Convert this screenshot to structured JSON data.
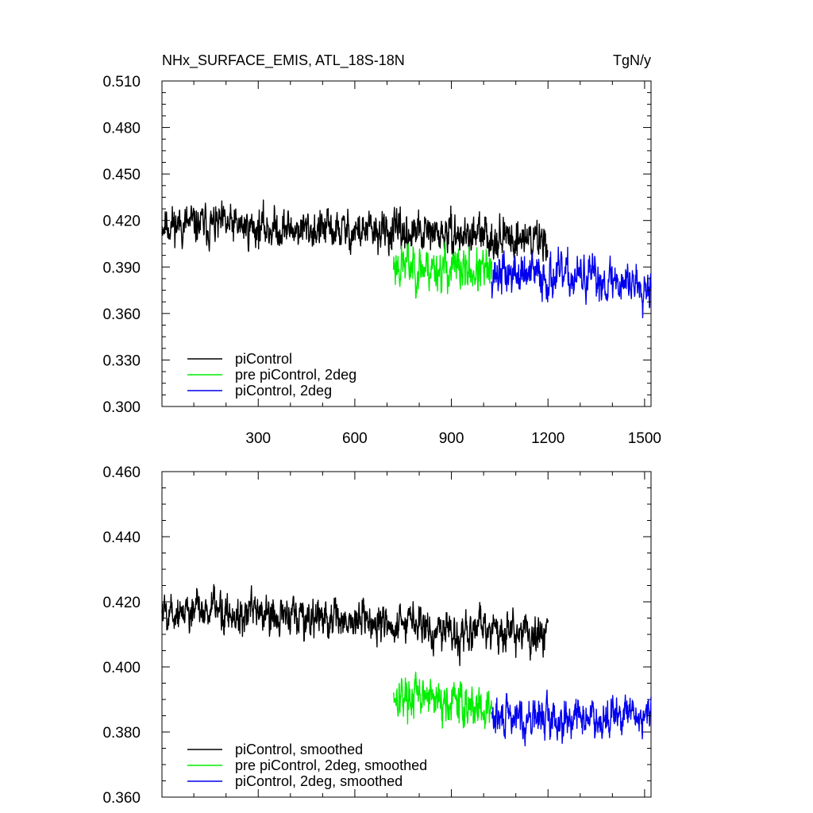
{
  "chart_data": [
    {
      "type": "line",
      "title": "NHx_SURFACE_EMIS, ATL_18S-18N",
      "units": "TgN/y",
      "xlim": [
        1,
        1520
      ],
      "ylim": [
        0.3,
        0.51
      ],
      "x_ticks": [
        300,
        600,
        900,
        1200,
        1500
      ],
      "x_tick_labels": [
        "300",
        "600",
        "900",
        "1200",
        "1500"
      ],
      "y_ticks": [
        0.3,
        0.33,
        0.36,
        0.39,
        0.42,
        0.45,
        0.48,
        0.51
      ],
      "y_tick_labels": [
        "0.300",
        "0.330",
        "0.360",
        "0.390",
        "0.420",
        "0.450",
        "0.480",
        "0.510"
      ],
      "grid": false,
      "legend_position": "bottom-left",
      "series": [
        {
          "name": "piControl",
          "color": "#000000",
          "x_start": 1,
          "x_end": 1200,
          "mean_start": 0.418,
          "mean_end": 0.408,
          "amplitude": 0.022,
          "seed": 11
        },
        {
          "name": "pre piControl, 2deg",
          "color": "#00ee00",
          "x_start": 720,
          "x_end": 1025,
          "mean_start": 0.392,
          "mean_end": 0.386,
          "amplitude": 0.025,
          "seed": 23
        },
        {
          "name": "piControl, 2deg",
          "color": "#0000ee",
          "x_start": 1025,
          "x_end": 1520,
          "mean_start": 0.386,
          "mean_end": 0.38,
          "amplitude": 0.024,
          "seed": 37
        }
      ]
    },
    {
      "type": "line",
      "xlim": [
        1,
        1520
      ],
      "ylim": [
        0.36,
        0.46
      ],
      "x_ticks": [
        300,
        600,
        900,
        1200,
        1500
      ],
      "y_ticks": [
        0.36,
        0.38,
        0.4,
        0.42,
        0.44,
        0.46
      ],
      "y_tick_labels": [
        "0.360",
        "0.380",
        "0.400",
        "0.420",
        "0.440",
        "0.460"
      ],
      "grid": false,
      "legend_position": "bottom-left",
      "series": [
        {
          "name": "piControl, smoothed",
          "color": "#000000",
          "x_start": 1,
          "x_end": 1200,
          "mean_start": 0.418,
          "mean_end": 0.41,
          "amplitude": 0.011,
          "seed": 5
        },
        {
          "name": "pre piControl, 2deg, smoothed",
          "color": "#00ee00",
          "x_start": 720,
          "x_end": 1025,
          "mean_start": 0.392,
          "mean_end": 0.387,
          "amplitude": 0.011,
          "seed": 17
        },
        {
          "name": "piControl, 2deg, smoothed",
          "color": "#0000ee",
          "x_start": 1025,
          "x_end": 1520,
          "mean_start": 0.384,
          "mean_end": 0.385,
          "amplitude": 0.01,
          "seed": 29
        }
      ]
    }
  ]
}
